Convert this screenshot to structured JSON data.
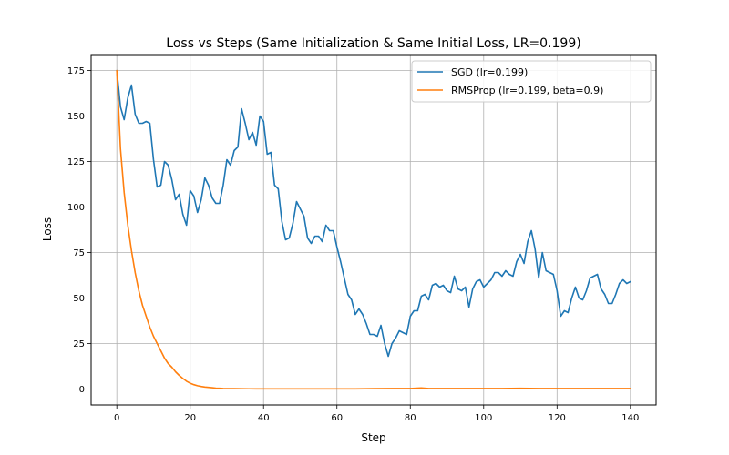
{
  "chart_data": {
    "type": "line",
    "title": "Loss vs Steps (Same Initialization & Same Initial Loss, LR=0.199)",
    "xlabel": "Step",
    "ylabel": "Loss",
    "xlim": [
      -7,
      147
    ],
    "ylim": [
      -8.75,
      183.75
    ],
    "xticks": [
      0,
      20,
      40,
      60,
      80,
      100,
      120,
      140
    ],
    "yticks": [
      0,
      25,
      50,
      75,
      100,
      125,
      150,
      175
    ],
    "grid": true,
    "legend_position": "top-right",
    "series": [
      {
        "name": "SGD (lr=0.199)",
        "color": "#1f77b4",
        "x": [
          0,
          1,
          2,
          3,
          4,
          5,
          6,
          7,
          8,
          9,
          10,
          11,
          12,
          13,
          14,
          15,
          16,
          17,
          18,
          19,
          20,
          21,
          22,
          23,
          24,
          25,
          26,
          27,
          28,
          29,
          30,
          31,
          32,
          33,
          34,
          35,
          36,
          37,
          38,
          39,
          40,
          41,
          42,
          43,
          44,
          45,
          46,
          47,
          48,
          49,
          50,
          51,
          52,
          53,
          54,
          55,
          56,
          57,
          58,
          59,
          60,
          61,
          62,
          63,
          64,
          65,
          66,
          67,
          68,
          69,
          70,
          71,
          72,
          73,
          74,
          75,
          76,
          77,
          78,
          79,
          80,
          81,
          82,
          83,
          84,
          85,
          86,
          87,
          88,
          89,
          90,
          91,
          92,
          93,
          94,
          95,
          96,
          97,
          98,
          99,
          100,
          101,
          102,
          103,
          104,
          105,
          106,
          107,
          108,
          109,
          110,
          111,
          112,
          113,
          114,
          115,
          116,
          117,
          118,
          119,
          120,
          121,
          122,
          123,
          124,
          125,
          126,
          127,
          128,
          129,
          130,
          131,
          132,
          133,
          134,
          135,
          136,
          137,
          138,
          139,
          140
        ],
        "y": [
          175,
          155,
          148,
          160,
          167,
          151,
          146,
          146,
          147,
          146,
          126,
          111,
          112,
          125,
          123,
          115,
          104,
          107,
          96,
          90,
          109,
          106,
          97,
          104,
          116,
          112,
          105,
          102,
          102,
          112,
          126,
          123,
          131,
          133,
          154,
          146,
          137,
          141,
          134,
          150,
          147,
          129,
          130,
          112,
          110,
          92,
          82,
          83,
          91,
          103,
          99,
          95,
          83,
          80,
          84,
          84,
          81,
          90,
          87,
          87,
          78,
          70,
          61,
          52,
          49,
          41,
          44,
          41,
          36,
          30,
          30,
          29,
          35,
          25,
          18,
          25,
          28,
          32,
          31,
          30,
          40,
          43,
          43,
          51,
          52,
          49,
          57,
          58,
          56,
          57,
          54,
          53,
          62,
          55,
          54,
          56,
          45,
          55,
          59,
          60,
          56,
          58,
          60,
          64,
          64,
          62,
          65,
          63,
          62,
          70,
          74,
          69,
          81,
          87,
          77,
          61,
          75,
          65,
          64,
          63,
          54,
          40,
          43,
          42,
          50,
          56,
          50,
          49,
          54,
          61,
          62,
          63,
          55,
          52,
          47,
          47,
          52,
          58,
          60,
          58,
          59
        ]
      },
      {
        "name": "RMSProp (lr=0.199, beta=0.9)",
        "color": "#ff7f0e",
        "x": [
          0,
          1,
          2,
          3,
          4,
          5,
          6,
          7,
          8,
          9,
          10,
          11,
          12,
          13,
          14,
          15,
          16,
          17,
          18,
          19,
          20,
          21,
          22,
          23,
          24,
          25,
          26,
          27,
          28,
          29,
          30,
          32,
          34,
          36,
          38,
          40,
          45,
          50,
          55,
          60,
          65,
          70,
          75,
          80,
          83,
          85,
          90,
          95,
          100,
          105,
          110,
          115,
          120,
          125,
          130,
          135,
          140
        ],
        "y": [
          175,
          132,
          108,
          90,
          76,
          64,
          54,
          46,
          40,
          34,
          29,
          25,
          21,
          17,
          14,
          12,
          9.5,
          7.5,
          5.8,
          4.3,
          3.2,
          2.4,
          1.8,
          1.4,
          1.1,
          0.9,
          0.7,
          0.5,
          0.4,
          0.3,
          0.25,
          0.2,
          0.15,
          0.12,
          0.1,
          0.1,
          0.1,
          0.1,
          0.1,
          0.1,
          0.1,
          0.2,
          0.3,
          0.3,
          0.6,
          0.3,
          0.3,
          0.3,
          0.3,
          0.3,
          0.4,
          0.3,
          0.3,
          0.3,
          0.3,
          0.3,
          0.3
        ]
      }
    ]
  }
}
